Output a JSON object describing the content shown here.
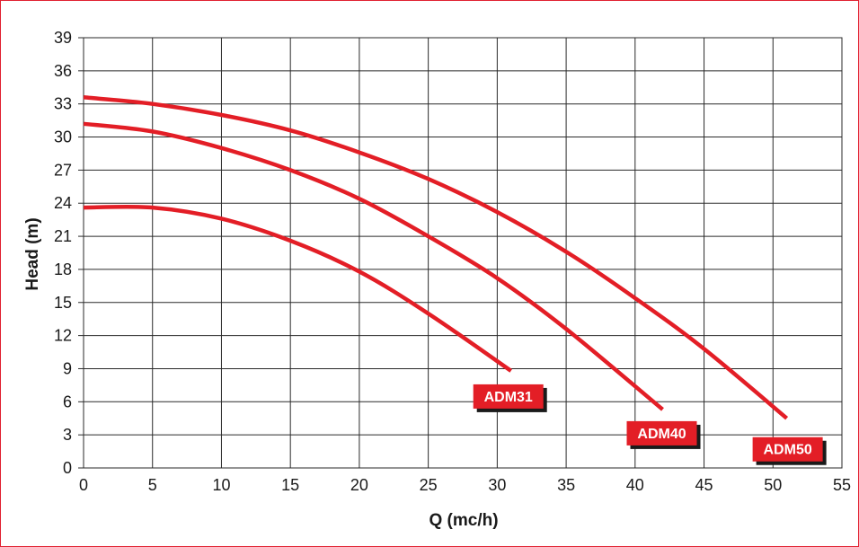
{
  "chart_data": {
    "type": "line",
    "title": "",
    "xlabel": "Q (mc/h)",
    "ylabel": "Head (m)",
    "xlim": [
      0,
      55
    ],
    "ylim": [
      0,
      39
    ],
    "xticks": [
      "0",
      "5",
      "10",
      "15",
      "20",
      "25",
      "30",
      "35",
      "40",
      "45",
      "50",
      "55"
    ],
    "yticks": [
      "0",
      "3",
      "6",
      "9",
      "12",
      "15",
      "18",
      "21",
      "24",
      "27",
      "30",
      "33",
      "36",
      "39"
    ],
    "grid": true,
    "series_color": "#e31e26",
    "series": [
      {
        "name": "ADM31",
        "x": [
          0,
          5,
          10,
          15,
          20,
          25,
          31
        ],
        "y": [
          23.6,
          23.6,
          22.6,
          20.6,
          17.8,
          14.0,
          8.8
        ]
      },
      {
        "name": "ADM40",
        "x": [
          0,
          5,
          10,
          15,
          20,
          25,
          30,
          35,
          42
        ],
        "y": [
          31.2,
          30.5,
          29.0,
          27.0,
          24.4,
          21.0,
          17.2,
          12.6,
          5.3
        ]
      },
      {
        "name": "ADM50",
        "x": [
          0,
          5,
          10,
          15,
          20,
          25,
          30,
          35,
          40,
          45,
          51
        ],
        "y": [
          33.6,
          33.0,
          32.0,
          30.6,
          28.6,
          26.2,
          23.2,
          19.6,
          15.4,
          10.8,
          4.5
        ]
      }
    ]
  }
}
